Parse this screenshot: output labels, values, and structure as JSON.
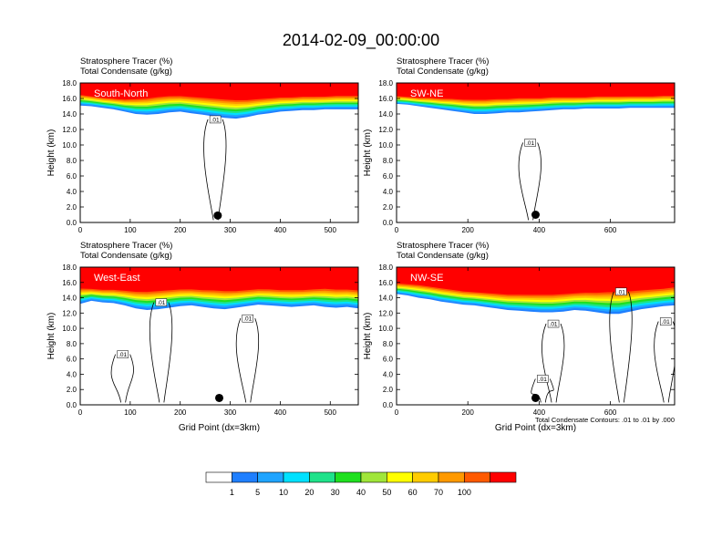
{
  "title": "2014-02-09_00:00:00",
  "chart_data": {
    "type": "heatmap",
    "title": "2014-02-09_00:00:00",
    "subtitle_lines": [
      "Stratosphere Tracer   (%)",
      "Total Condensate   (g/kg)"
    ],
    "ylabel": "Height (km)",
    "xlabel": "Grid Point (dx=3km)",
    "yticks": [
      "0.0",
      "2.0",
      "4.0",
      "6.0",
      "8.0",
      "10.0",
      "12.0",
      "14.0",
      "16.0",
      "18.0"
    ],
    "ylim": [
      0,
      18
    ],
    "contour_note": "Total Condensate Contours: .01 to .01 by .000",
    "colorbar": {
      "levels": [
        "1",
        "5",
        "10",
        "20",
        "30",
        "40",
        "50",
        "60",
        "70",
        "100"
      ],
      "colors": [
        "#ffffff",
        "#1f7fff",
        "#1fa4ff",
        "#00e1ff",
        "#1fe28a",
        "#1fe01f",
        "#a0e63a",
        "#ffff00",
        "#ffcc00",
        "#ff9900",
        "#ff5a00",
        "#ff0000"
      ]
    },
    "panels": [
      {
        "name": "South-North",
        "xticks": [
          0,
          100,
          200,
          300,
          400,
          500
        ],
        "xlim": [
          0,
          556
        ],
        "tracer_base_km": [
          15.1,
          15.0,
          14.8,
          14.6,
          14.3,
          14.0,
          13.9,
          14.0,
          14.2,
          14.3,
          14.1,
          13.9,
          13.7,
          13.5,
          13.4,
          13.6,
          13.9,
          14.1,
          14.3,
          14.4,
          14.5,
          14.5,
          14.6,
          14.6,
          14.6,
          14.6
        ],
        "tracer_top_km": [
          16.6,
          16.4,
          16.2,
          16.1,
          16.0,
          16.1,
          16.2,
          16.4,
          16.5,
          16.5,
          16.4,
          16.3,
          16.2,
          16.1,
          16.0,
          16.0,
          16.1,
          16.2,
          16.3,
          16.3,
          16.4,
          16.4,
          16.4,
          16.5,
          16.5,
          16.5
        ],
        "contour_labels": [
          {
            "text": ".01",
            "x": 270,
            "y": 13.3
          }
        ],
        "marker": {
          "x": 275,
          "y": 0.9
        }
      },
      {
        "name": "SW-NE",
        "xticks": [
          0,
          200,
          400,
          600
        ],
        "xlim": [
          0,
          780
        ],
        "tracer_base_km": [
          15.3,
          15.2,
          15.0,
          14.8,
          14.6,
          14.4,
          14.2,
          14.0,
          14.0,
          14.1,
          14.2,
          14.2,
          14.3,
          14.4,
          14.5,
          14.6,
          14.6,
          14.7,
          14.7,
          14.7,
          14.7,
          14.8,
          14.8,
          14.8,
          14.8,
          14.8
        ],
        "tracer_top_km": [
          16.4,
          16.3,
          16.2,
          16.2,
          16.1,
          16.1,
          16.0,
          16.0,
          16.0,
          16.1,
          16.1,
          16.2,
          16.2,
          16.2,
          16.3,
          16.3,
          16.3,
          16.3,
          16.4,
          16.4,
          16.4,
          16.4,
          16.4,
          16.4,
          16.5,
          16.5
        ],
        "contour_labels": [
          {
            "text": ".01",
            "x": 375,
            "y": 10.3
          }
        ],
        "marker": {
          "x": 390,
          "y": 1.0
        }
      },
      {
        "name": "West-East",
        "xticks": [
          0,
          100,
          200,
          300,
          400,
          500
        ],
        "xlim": [
          0,
          556
        ],
        "tracer_base_km": [
          13.2,
          13.6,
          13.4,
          13.3,
          13.0,
          12.6,
          12.4,
          12.5,
          12.7,
          12.9,
          13.0,
          12.8,
          12.6,
          12.5,
          12.7,
          12.9,
          13.1,
          13.0,
          12.9,
          12.8,
          12.9,
          13.0,
          12.8,
          12.7,
          12.8,
          12.6
        ],
        "tracer_top_km": [
          15.4,
          15.3,
          15.2,
          15.2,
          15.1,
          15.0,
          15.0,
          15.1,
          15.2,
          15.3,
          15.3,
          15.2,
          15.2,
          15.1,
          15.1,
          15.2,
          15.3,
          15.3,
          15.2,
          15.2,
          15.2,
          15.3,
          15.4,
          15.3,
          15.3,
          15.2
        ],
        "contour_labels": [
          {
            "text": ".01",
            "x": 162,
            "y": 13.4
          },
          {
            "text": ".01",
            "x": 335,
            "y": 11.3
          },
          {
            "text": ".01",
            "x": 85,
            "y": 6.6
          }
        ],
        "marker": {
          "x": 278,
          "y": 0.9
        }
      },
      {
        "name": "NW-SE",
        "xticks": [
          0,
          200,
          400,
          600
        ],
        "xlim": [
          0,
          780
        ],
        "tracer_base_km": [
          14.5,
          14.3,
          14.0,
          13.8,
          13.5,
          13.3,
          13.1,
          13.0,
          12.8,
          12.6,
          12.4,
          12.3,
          12.2,
          12.1,
          12.1,
          12.2,
          12.4,
          12.3,
          12.1,
          11.9,
          11.9,
          12.2,
          12.5,
          12.7,
          12.9,
          13.0
        ],
        "tracer_top_km": [
          16.0,
          15.9,
          15.8,
          15.6,
          15.4,
          15.2,
          15.0,
          14.9,
          14.8,
          14.7,
          14.6,
          14.6,
          14.6,
          14.6,
          14.6,
          14.7,
          14.8,
          14.9,
          14.9,
          15.0,
          15.0,
          15.1,
          15.2,
          15.3,
          15.4,
          15.6
        ],
        "contour_labels": [
          {
            "text": ".01",
            "x": 630,
            "y": 14.8
          },
          {
            "text": ".01",
            "x": 440,
            "y": 10.6
          },
          {
            "text": ".01",
            "x": 410,
            "y": 3.4
          },
          {
            "text": ".01",
            "x": 755,
            "y": 10.9
          }
        ],
        "marker": {
          "x": 390,
          "y": 0.9
        }
      }
    ]
  }
}
